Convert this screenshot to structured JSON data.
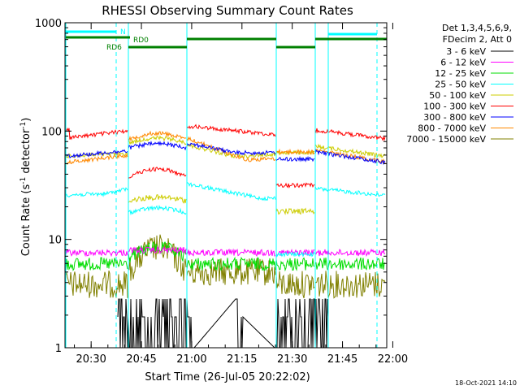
{
  "chart_data": {
    "type": "line",
    "title": "RHESSI Observing Summary Count Rates",
    "xlabel": "Start Time (26-Jul-05 20:22:02)",
    "ylabel_main": "Count Rate (s",
    "ylabel_sup1": "-1",
    "ylabel_mid": " detector",
    "ylabel_sup2": "-1",
    "ylabel_end": ")",
    "yscale": "log",
    "ylim": [
      1,
      1000
    ],
    "xlim_minutes": [
      20.37,
      21.97
    ],
    "x_ticks": [
      {
        "label": "20:30",
        "t": 20.5
      },
      {
        "label": "20:45",
        "t": 20.75
      },
      {
        "label": "21:00",
        "t": 21.0
      },
      {
        "label": "21:15",
        "t": 21.25
      },
      {
        "label": "21:30",
        "t": 21.5
      },
      {
        "label": "21:45",
        "t": 21.75
      },
      {
        "label": "22:00",
        "t": 22.0
      }
    ],
    "y_ticks": [
      {
        "label": "1",
        "v": 1
      },
      {
        "label": "10",
        "v": 10
      },
      {
        "label": "100",
        "v": 100
      },
      {
        "label": "1000",
        "v": 1000
      }
    ],
    "legend_header": [
      "Det 1,3,4,5,6,9,",
      "FDecim 2, Att 0"
    ],
    "series": [
      {
        "name": "3 - 6 keV",
        "color": "#000000"
      },
      {
        "name": "6 - 12 keV",
        "color": "#ff00ff"
      },
      {
        "name": "12 - 25 keV",
        "color": "#00dd00"
      },
      {
        "name": "25 - 50 keV",
        "color": "#00ffff"
      },
      {
        "name": "50 - 100 keV",
        "color": "#cccc00"
      },
      {
        "name": "100 - 300 keV",
        "color": "#ff0000"
      },
      {
        "name": "300 - 800 keV",
        "color": "#0000ff"
      },
      {
        "name": "800 - 7000 keV",
        "color": "#ff8800"
      },
      {
        "name": "7000 - 15000 keV",
        "color": "#808000"
      }
    ],
    "flags": {
      "N": {
        "label": "N",
        "color": "#00ffff"
      },
      "RD0": {
        "label": "RD0",
        "color": "#008000"
      },
      "RD6": {
        "label": "RD6",
        "color": "#008000"
      }
    },
    "grid": false,
    "legend_placement": "right"
  },
  "footer": {
    "date": "18-Oct-2021 14:10"
  }
}
